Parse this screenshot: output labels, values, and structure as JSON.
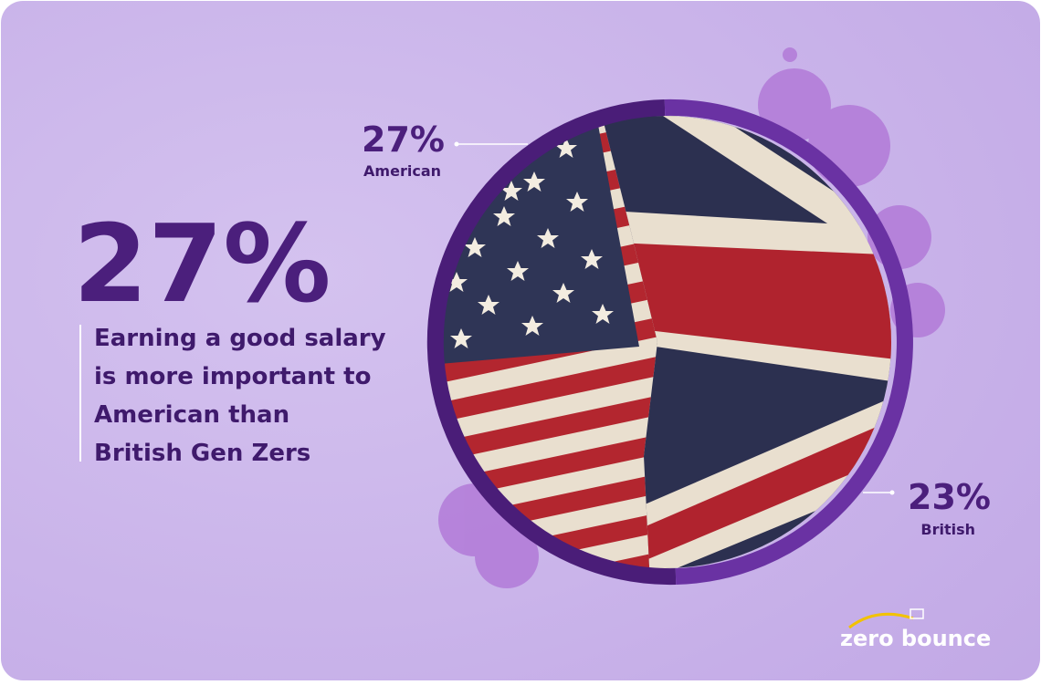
{
  "headline": {
    "value": "27%",
    "description": [
      "Earning a good salary",
      "is more important to",
      "American than",
      "British Gen Zers"
    ]
  },
  "callouts": [
    {
      "value": "27%",
      "label": "American"
    },
    {
      "value": "23%",
      "label": "British"
    }
  ],
  "logo": "zero bounce"
}
